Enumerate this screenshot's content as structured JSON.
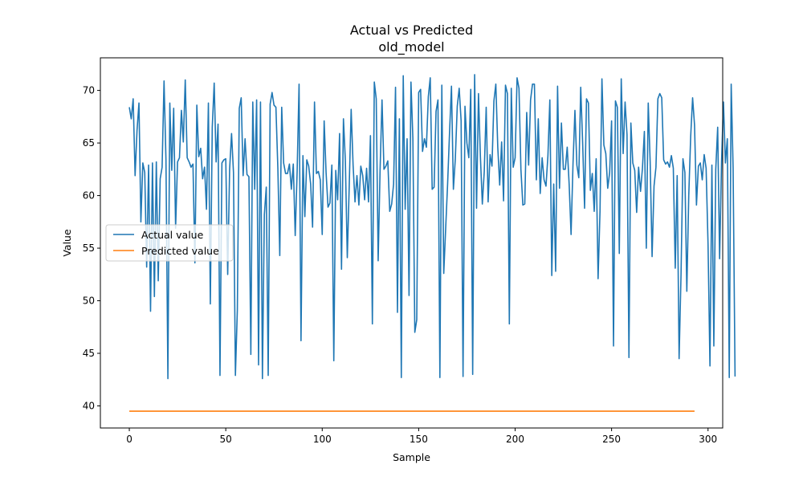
{
  "chart_data": {
    "type": "line",
    "title": "Actual vs Predicted",
    "subtitle": "old_model",
    "xlabel": "Sample",
    "ylabel": "Value",
    "xlim": [
      -15,
      307.6
    ],
    "ylim": [
      37.9,
      73.1
    ],
    "xticks": [
      0,
      50,
      100,
      150,
      200,
      250,
      300
    ],
    "yticks": [
      40,
      45,
      50,
      55,
      60,
      65,
      70
    ],
    "grid": false,
    "legend_position": "center-left",
    "series": [
      {
        "name": "Actual value",
        "color": "#1f77b4",
        "values": [
          68.4,
          67.3,
          69.2,
          61.9,
          66.2,
          68.8,
          57.5,
          63.1,
          62.2,
          53.2,
          62.9,
          49,
          63.1,
          50.4,
          63.2,
          51.9,
          61.6,
          62.7,
          70.9,
          63.4,
          42.6,
          68.8,
          62.4,
          68.3,
          56.9,
          63.2,
          63.6,
          68.1,
          65.1,
          71,
          63.6,
          63.2,
          62.7,
          63,
          53.6,
          68.6,
          63.7,
          64.5,
          61.6,
          62.7,
          58.7,
          68.8,
          49.7,
          66.5,
          70.7,
          63.2,
          66.8,
          42.9,
          63.1,
          63.4,
          63.5,
          52.5,
          62.5,
          65.9,
          62.2,
          42.9,
          49.1,
          68.3,
          69.3,
          61.9,
          65.4,
          62,
          61.8,
          44.9,
          68.9,
          60.6,
          69.1,
          43.9,
          68.9,
          42.6,
          58.2,
          60.8,
          42.9,
          68.7,
          69.8,
          68.6,
          68.4,
          62.6,
          54.3,
          68.4,
          63.1,
          62.1,
          62.1,
          63,
          60.6,
          63,
          56.2,
          62.3,
          70.6,
          46.2,
          63.8,
          58,
          63.4,
          62.8,
          61.1,
          57,
          68.9,
          62.1,
          62.3,
          61.5,
          56.3,
          67.1,
          62.2,
          58.9,
          59.3,
          62.9,
          44.3,
          62.4,
          59.6,
          65.9,
          53,
          67.3,
          63.3,
          54.1,
          60.9,
          68.2,
          62.9,
          59.4,
          61.9,
          59.1,
          62.8,
          61.9,
          59.6,
          62.6,
          59.4,
          65.7,
          47.8,
          70.8,
          69.2,
          53.8,
          62.5,
          69.1,
          62.5,
          62.8,
          63.3,
          58.5,
          59.2,
          61.1,
          70.3,
          48.9,
          67.3,
          42.7,
          71.4,
          58.7,
          65.4,
          50.5,
          70.8,
          65.4,
          47,
          48.2,
          69.8,
          70.1,
          64.2,
          65.4,
          64.6,
          69.4,
          71.2,
          60.6,
          60.8,
          68,
          69.1,
          42.7,
          70.5,
          52.6,
          56.9,
          61.1,
          66,
          70.4,
          60.6,
          63.5,
          68.5,
          70.2,
          67.1,
          42.8,
          68.5,
          65,
          63.6,
          70.1,
          43,
          71.5,
          58.8,
          69.7,
          63.7,
          59.2,
          62.3,
          68.4,
          59.4,
          63.9,
          62.8,
          69,
          70.6,
          64.6,
          61,
          65.1,
          59.5,
          70.5,
          69.7,
          47.8,
          70.2,
          62.7,
          63.6,
          71.2,
          70.2,
          62.5,
          59.1,
          59.2,
          67.9,
          62.9,
          69.1,
          70.6,
          70.6,
          61.5,
          67.3,
          60.2,
          63.6,
          61.5,
          60.9,
          63.8,
          69.1,
          52.4,
          61.1,
          52.8,
          70.4,
          60.7,
          66.9,
          62.5,
          62.5,
          64.6,
          61.1,
          56.3,
          63,
          68.1,
          62.9,
          61.7,
          70.3,
          65,
          58.8,
          69.2,
          68.8,
          60.5,
          62.1,
          58.5,
          63.5,
          52.1,
          58.5,
          71.1,
          64.8,
          64,
          60.7,
          62.2,
          67.1,
          45.7,
          69,
          68.4,
          54.5,
          71.1,
          64,
          68.9,
          65.8,
          44.6,
          66.9,
          63.1,
          62.4,
          58.4,
          62.7,
          60.4,
          62.6,
          66.1,
          55,
          68.8,
          63.2,
          54.2,
          60.9,
          62.7,
          69.2,
          69.7,
          69.3,
          63.4,
          63,
          63.2,
          62.7,
          63.8,
          62.6,
          53.1,
          61.9,
          44.5,
          52.5,
          63.5,
          62.2,
          50.9,
          60,
          65.6,
          69.3,
          66.7,
          59.1,
          62.8,
          63.1,
          61.5,
          63.9,
          62.6,
          55.4,
          43.8,
          62.9,
          45.7,
          62.5,
          66.5,
          54,
          63.2,
          68.9,
          63.1,
          65.4,
          42.7,
          70.6,
          62.6,
          42.8
        ]
      },
      {
        "name": "Predicted value",
        "color": "#ff7f0e",
        "values_constant": 39.5,
        "x_range": [
          0,
          293
        ]
      }
    ]
  }
}
